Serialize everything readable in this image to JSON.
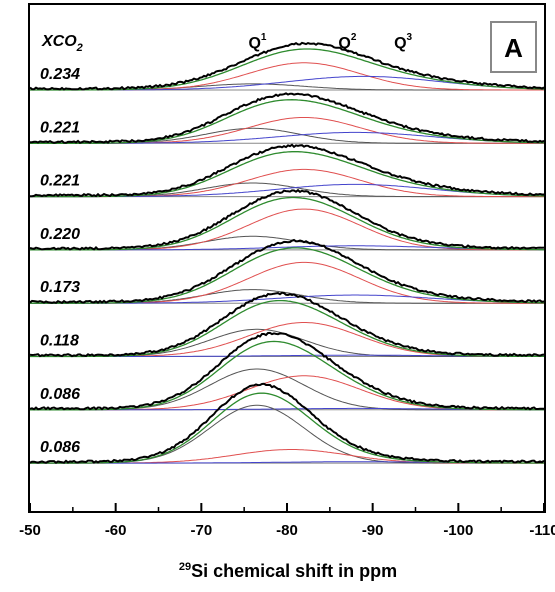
{
  "chart_data": {
    "type": "line",
    "title": "",
    "panel_label": "A",
    "legend_header": "XCO",
    "legend_header_sub": "2",
    "xlabel_prefix": "29",
    "xlabel": "Si chemical shift in ppm",
    "ylabel": "",
    "xlim": [
      -50,
      -110
    ],
    "x_ticks": [
      -50,
      -60,
      -70,
      -80,
      -90,
      -100,
      -110
    ],
    "x_tick_labels": [
      "-50",
      "-60",
      "-70",
      "-80",
      "-90",
      "-100",
      "-110"
    ],
    "grid": false,
    "peak_labels": [
      {
        "base": "Q",
        "sup": "1",
        "x": -75.5
      },
      {
        "base": "Q",
        "sup": "2",
        "x": -86
      },
      {
        "base": "Q",
        "sup": "3",
        "x": -92.5
      }
    ],
    "series_colors": {
      "spectrum": "#000000",
      "fit": "#2e8b2e",
      "Q1": "#555555",
      "Q2": "#e05050",
      "Q3": "#4444cc"
    },
    "spectra": [
      {
        "xco2": "0.234",
        "q1": {
          "center": -76,
          "width": 6,
          "amp": 0.09
        },
        "q2": {
          "center": -82,
          "width": 6.5,
          "amp": 0.4
        },
        "q3": {
          "center": -89,
          "width": 9,
          "amp": 0.2
        }
      },
      {
        "xco2": "0.221",
        "q1": {
          "center": -76,
          "width": 5.5,
          "amp": 0.22
        },
        "q2": {
          "center": -82,
          "width": 6.5,
          "amp": 0.38
        },
        "q3": {
          "center": -88,
          "width": 9,
          "amp": 0.16
        }
      },
      {
        "xco2": "0.221",
        "q1": {
          "center": -76,
          "width": 5.5,
          "amp": 0.2
        },
        "q2": {
          "center": -82,
          "width": 6.5,
          "amp": 0.4
        },
        "q3": {
          "center": -88,
          "width": 9,
          "amp": 0.18
        }
      },
      {
        "xco2": "0.220",
        "q1": {
          "center": -76,
          "width": 5.5,
          "amp": 0.2
        },
        "q2": {
          "center": -82,
          "width": 6.5,
          "amp": 0.6
        },
        "q3": {
          "center": -88,
          "width": 9,
          "amp": 0.06
        }
      },
      {
        "xco2": "0.173",
        "q1": {
          "center": -76,
          "width": 5.5,
          "amp": 0.2
        },
        "q2": {
          "center": -82,
          "width": 6.5,
          "amp": 0.6
        },
        "q3": {
          "center": -88,
          "width": 9,
          "amp": 0.12
        }
      },
      {
        "xco2": "0.118",
        "q1": {
          "center": -76.5,
          "width": 5.5,
          "amp": 0.4
        },
        "q2": {
          "center": -82,
          "width": 6.5,
          "amp": 0.5
        },
        "q3": {
          "center": -88,
          "width": 9,
          "amp": 0.02
        }
      },
      {
        "xco2": "0.086",
        "q1": {
          "center": -76.5,
          "width": 5.5,
          "amp": 0.6
        },
        "q2": {
          "center": -82,
          "width": 6.5,
          "amp": 0.5
        },
        "q3": {
          "center": -88,
          "width": 9,
          "amp": 0.02
        }
      },
      {
        "xco2": "0.086",
        "q1": {
          "center": -76.5,
          "width": 5.5,
          "amp": 0.85
        },
        "q2": {
          "center": -80.5,
          "width": 6.5,
          "amp": 0.2
        },
        "q3": {
          "center": -88,
          "width": 9,
          "amp": 0.02
        }
      }
    ]
  }
}
